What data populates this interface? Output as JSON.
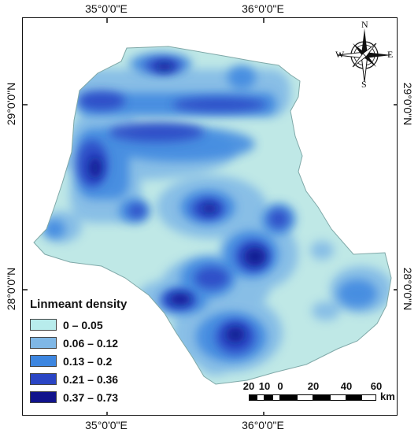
{
  "coordinates": {
    "top": [
      "35°0'0\"E",
      "36°0'0\"E"
    ],
    "bottom": [
      "35°0'0\"E",
      "36°0'0\"E"
    ],
    "left": [
      "29°0'0\"N",
      "28°0'0\"N"
    ],
    "right": [
      "29°0'0\"N",
      "28°0'0\"N"
    ]
  },
  "legend": {
    "title": "Linmeant density",
    "items": [
      {
        "label": "0 – 0.05",
        "color": "#b8ecec"
      },
      {
        "label": "0.06 – 0.12",
        "color": "#7fb7e6"
      },
      {
        "label": "0.13 – 0.2",
        "color": "#3d86e0"
      },
      {
        "label": "0.21 – 0.36",
        "color": "#2a45c4"
      },
      {
        "label": "0.37 – 0.73",
        "color": "#11138c"
      }
    ]
  },
  "scale_bar": {
    "labels": [
      "20",
      "10",
      "0",
      "20",
      "40",
      "60"
    ],
    "unit": "km"
  },
  "north_arrow": {
    "icon": "compass-rose-icon",
    "n": "N",
    "s": "S",
    "e": "E",
    "w": "W"
  }
}
